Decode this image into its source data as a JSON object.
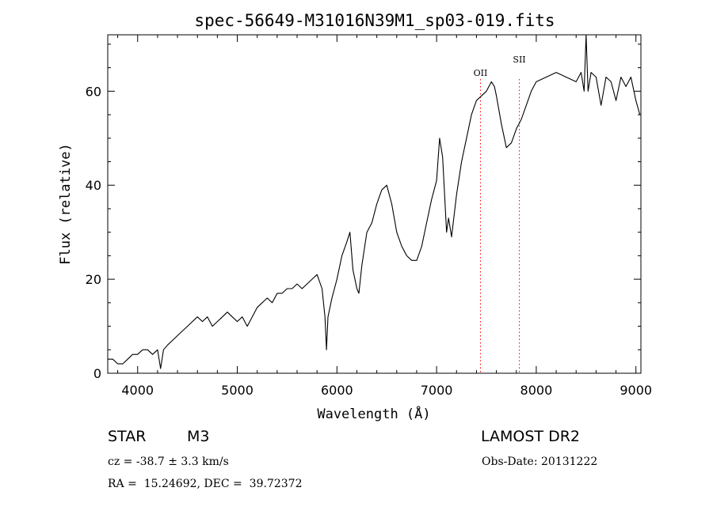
{
  "chart_data": {
    "type": "line",
    "title": "spec-56649-M31016N39M1_sp03-019.fits",
    "xlabel": "Wavelength (Å)",
    "ylabel": "Flux (relative)",
    "xlim": [
      3700,
      9050
    ],
    "ylim": [
      0,
      72
    ],
    "x_ticks": [
      4000,
      5000,
      6000,
      7000,
      8000,
      9000
    ],
    "y_ticks": [
      0,
      20,
      40,
      60
    ],
    "grid": false,
    "line_color": "#000000",
    "marker_color": "#ff0000",
    "x": [
      3700,
      3750,
      3800,
      3850,
      3900,
      3950,
      4000,
      4050,
      4100,
      4150,
      4200,
      4230,
      4260,
      4300,
      4350,
      4400,
      4450,
      4500,
      4550,
      4600,
      4650,
      4700,
      4750,
      4800,
      4850,
      4900,
      4950,
      5000,
      5050,
      5100,
      5150,
      5200,
      5250,
      5300,
      5350,
      5400,
      5450,
      5500,
      5550,
      5600,
      5650,
      5700,
      5750,
      5800,
      5850,
      5880,
      5895,
      5910,
      5950,
      6000,
      6050,
      6100,
      6130,
      6160,
      6180,
      6200,
      6220,
      6250,
      6300,
      6350,
      6400,
      6450,
      6500,
      6550,
      6600,
      6650,
      6700,
      6750,
      6800,
      6850,
      6900,
      6950,
      7000,
      7030,
      7060,
      7080,
      7100,
      7120,
      7150,
      7200,
      7250,
      7300,
      7350,
      7400,
      7450,
      7500,
      7550,
      7580,
      7600,
      7650,
      7700,
      7750,
      7800,
      7850,
      7900,
      7950,
      8000,
      8100,
      8200,
      8300,
      8400,
      8450,
      8480,
      8500,
      8520,
      8550,
      8600,
      8650,
      8700,
      8750,
      8800,
      8850,
      8900,
      8950,
      9000,
      9040
    ],
    "y": [
      3,
      3,
      2,
      2,
      3,
      4,
      4,
      5,
      5,
      4,
      5,
      1,
      5,
      6,
      7,
      8,
      9,
      10,
      11,
      12,
      11,
      12,
      10,
      11,
      12,
      13,
      12,
      11,
      12,
      10,
      12,
      14,
      15,
      16,
      15,
      17,
      17,
      18,
      18,
      19,
      18,
      19,
      20,
      21,
      18,
      12,
      5,
      12,
      16,
      20,
      25,
      28,
      30,
      22,
      20,
      18,
      17,
      23,
      30,
      32,
      36,
      39,
      40,
      36,
      30,
      27,
      25,
      24,
      24,
      27,
      32,
      37,
      41,
      50,
      46,
      38,
      30,
      33,
      29,
      38,
      45,
      50,
      55,
      58,
      59,
      60,
      62,
      61,
      59,
      53,
      48,
      49,
      52,
      54,
      57,
      60,
      62,
      63,
      64,
      63,
      62,
      64,
      60,
      72,
      60,
      64,
      63,
      57,
      63,
      62,
      58,
      63,
      61,
      63,
      58,
      55
    ]
  },
  "markers": [
    {
      "label": "OII",
      "x": 7440
    },
    {
      "label": "SII",
      "x": 7830
    }
  ],
  "info": {
    "object_class": "STAR",
    "subclass": "M3",
    "survey": "LAMOST DR2",
    "cz": "cz = -38.7 ± 3.3 km/s",
    "obs_date": "Obs-Date: 20131222",
    "coords": "RA =  15.24692, DEC =  39.72372"
  }
}
